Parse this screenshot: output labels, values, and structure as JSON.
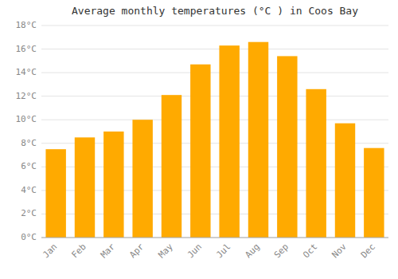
{
  "chart_data": {
    "type": "bar",
    "title": "Average monthly temperatures (°C ) in Coos Bay",
    "categories": [
      "Jan",
      "Feb",
      "Mar",
      "Apr",
      "May",
      "Jun",
      "Jul",
      "Aug",
      "Sep",
      "Oct",
      "Nov",
      "Dec"
    ],
    "values": [
      7.5,
      8.5,
      9.0,
      10.0,
      12.1,
      14.7,
      16.3,
      16.6,
      15.4,
      12.6,
      9.7,
      7.6
    ],
    "color": "#FFAA00",
    "ylim": [
      0,
      18
    ],
    "yticks": [
      {
        "value": 0,
        "label": "0°C"
      },
      {
        "value": 2,
        "label": "2°C"
      },
      {
        "value": 4,
        "label": "4°C"
      },
      {
        "value": 6,
        "label": "6°C"
      },
      {
        "value": 8,
        "label": "8°C"
      },
      {
        "value": 10,
        "label": "10°C"
      },
      {
        "value": 12,
        "label": "12°C"
      },
      {
        "value": 14,
        "label": "14°C"
      },
      {
        "value": 16,
        "label": "16°C"
      },
      {
        "value": 18,
        "label": "18°C"
      }
    ],
    "grid": true
  }
}
